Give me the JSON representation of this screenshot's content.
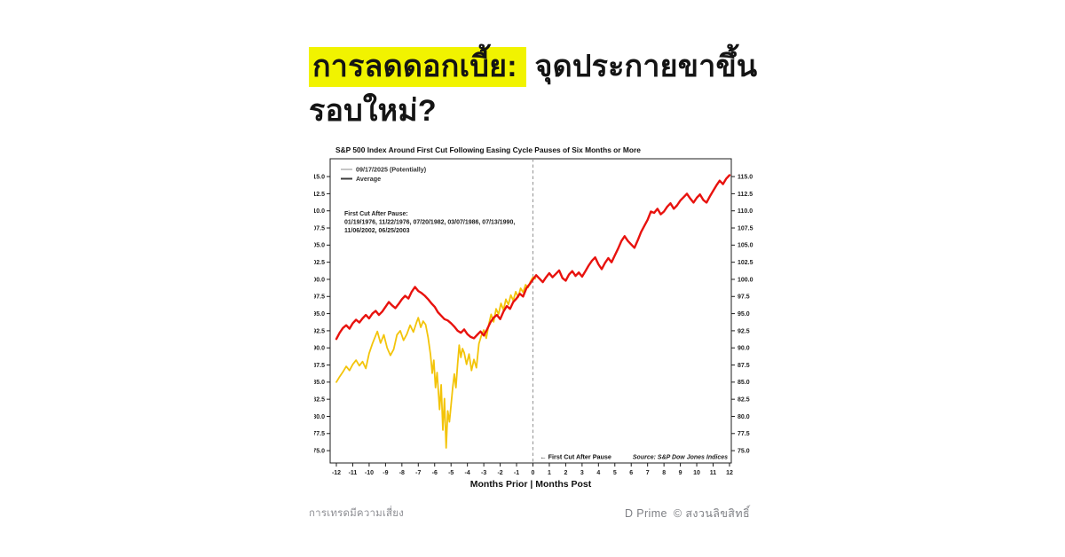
{
  "title": {
    "highlight": "การลดดอกเบี้ย:",
    "line1_rest": " จุดประกายขาขึ้น",
    "line2": "รอบใหม่?",
    "highlight_color": "#f1f300",
    "text_color": "#141414"
  },
  "footer": {
    "disclaimer": "การเทรดมีความเสี่ยง",
    "brand": "D Prime",
    "copyright": "© สงวนลิขสิทธิ์"
  },
  "chart_data": {
    "type": "line",
    "title": "S&P 500 Index Around First Cut Following Easing Cycle Pauses of Six Months or More",
    "xlabel": "Months Prior | Months Post",
    "ylabel": "",
    "xlim": [
      -12.38,
      12.11
    ],
    "ylim": [
      73.2,
      117.6
    ],
    "x_ticks": [
      -12,
      -11,
      -10,
      -9,
      -8,
      -7,
      -6,
      -5,
      -4,
      -3,
      -2,
      -1,
      0,
      1,
      2,
      3,
      4,
      5,
      6,
      7,
      8,
      9,
      10,
      11,
      12
    ],
    "y_ticks": [
      75.0,
      77.5,
      80.0,
      82.5,
      85.0,
      87.5,
      90.0,
      92.5,
      95.0,
      97.5,
      100.0,
      102.5,
      105.0,
      107.5,
      110.0,
      112.5,
      115.0
    ],
    "grid": false,
    "legend_position": "top-left",
    "legend": [
      {
        "label": "09/17/2025 (Potentially)",
        "swatch_color": "#c6c6c6"
      },
      {
        "label": "Average",
        "swatch_color": "#3d3d3d"
      }
    ],
    "vline": {
      "x": 0,
      "style": "dashed",
      "color": "#999999"
    },
    "annotations": {
      "pause_dates": [
        "First Cut After Pause:",
        "01/19/1976, 11/22/1976, 07/20/1982, 03/07/1986, 07/13/1990,",
        "11/06/2002, 06/25/2003"
      ],
      "first_cut_arrow": "←  First Cut After Pause",
      "source": "Source:  S&P Dow Jones Indices"
    },
    "axis_color": "#1c1c1c",
    "series": [
      {
        "name": "09/17/2025 (Potentially)",
        "color": "#f3c40a",
        "width": 1.8,
        "points": [
          [
            -12,
            85.0
          ],
          [
            -11.8,
            85.8
          ],
          [
            -11.6,
            86.5
          ],
          [
            -11.4,
            87.3
          ],
          [
            -11.2,
            86.7
          ],
          [
            -11,
            87.6
          ],
          [
            -10.8,
            88.2
          ],
          [
            -10.6,
            87.4
          ],
          [
            -10.4,
            88.0
          ],
          [
            -10.2,
            87.0
          ],
          [
            -10,
            89.2
          ],
          [
            -9.8,
            90.6
          ],
          [
            -9.6,
            91.8
          ],
          [
            -9.5,
            92.4
          ],
          [
            -9.3,
            90.7
          ],
          [
            -9.1,
            91.9
          ],
          [
            -8.9,
            90.0
          ],
          [
            -8.7,
            88.9
          ],
          [
            -8.5,
            89.8
          ],
          [
            -8.3,
            91.9
          ],
          [
            -8.1,
            92.5
          ],
          [
            -7.9,
            91.1
          ],
          [
            -7.7,
            92.0
          ],
          [
            -7.5,
            93.3
          ],
          [
            -7.3,
            92.3
          ],
          [
            -7.1,
            93.8
          ],
          [
            -7,
            94.4
          ],
          [
            -6.85,
            93.0
          ],
          [
            -6.7,
            93.9
          ],
          [
            -6.55,
            93.4
          ],
          [
            -6.4,
            91.5
          ],
          [
            -6.25,
            89.0
          ],
          [
            -6.15,
            86.3
          ],
          [
            -6.05,
            88.2
          ],
          [
            -5.95,
            84.2
          ],
          [
            -5.85,
            86.4
          ],
          [
            -5.7,
            81.0
          ],
          [
            -5.6,
            84.6
          ],
          [
            -5.5,
            78.0
          ],
          [
            -5.4,
            82.6
          ],
          [
            -5.3,
            75.4
          ],
          [
            -5.2,
            80.8
          ],
          [
            -5.1,
            79.2
          ],
          [
            -5,
            81.6
          ],
          [
            -4.9,
            84.2
          ],
          [
            -4.8,
            86.2
          ],
          [
            -4.7,
            84.2
          ],
          [
            -4.6,
            87.6
          ],
          [
            -4.5,
            90.4
          ],
          [
            -4.4,
            88.6
          ],
          [
            -4.3,
            89.9
          ],
          [
            -4.2,
            89.3
          ],
          [
            -4.05,
            87.6
          ],
          [
            -3.9,
            89.1
          ],
          [
            -3.75,
            86.7
          ],
          [
            -3.6,
            88.3
          ],
          [
            -3.45,
            87.1
          ],
          [
            -3.3,
            90.6
          ],
          [
            -3.15,
            91.8
          ],
          [
            -3,
            92.6
          ],
          [
            -2.85,
            91.4
          ],
          [
            -2.7,
            93.4
          ],
          [
            -2.55,
            94.9
          ],
          [
            -2.4,
            93.8
          ],
          [
            -2.25,
            95.7
          ],
          [
            -2.1,
            94.9
          ],
          [
            -1.95,
            96.5
          ],
          [
            -1.8,
            95.5
          ],
          [
            -1.65,
            97.1
          ],
          [
            -1.5,
            96.3
          ],
          [
            -1.35,
            97.7
          ],
          [
            -1.2,
            96.9
          ],
          [
            -1.05,
            98.2
          ],
          [
            -0.9,
            97.4
          ],
          [
            -0.75,
            98.7
          ],
          [
            -0.6,
            98.1
          ],
          [
            -0.45,
            99.2
          ],
          [
            -0.3,
            98.8
          ],
          [
            -0.15,
            99.7
          ],
          [
            0,
            100.3
          ],
          [
            0.15,
            100.1
          ]
        ]
      },
      {
        "name": "Average",
        "color": "#e8120e",
        "width": 2.4,
        "points": [
          [
            -12,
            91.3
          ],
          [
            -11.8,
            92.2
          ],
          [
            -11.6,
            92.9
          ],
          [
            -11.4,
            93.3
          ],
          [
            -11.2,
            92.8
          ],
          [
            -11,
            93.6
          ],
          [
            -10.8,
            94.1
          ],
          [
            -10.6,
            93.7
          ],
          [
            -10.4,
            94.3
          ],
          [
            -10.2,
            94.8
          ],
          [
            -10,
            94.3
          ],
          [
            -9.8,
            95.0
          ],
          [
            -9.6,
            95.4
          ],
          [
            -9.4,
            94.8
          ],
          [
            -9.2,
            95.3
          ],
          [
            -9,
            96.0
          ],
          [
            -8.8,
            96.7
          ],
          [
            -8.6,
            96.2
          ],
          [
            -8.4,
            95.8
          ],
          [
            -8.2,
            96.4
          ],
          [
            -8,
            97.1
          ],
          [
            -7.8,
            97.6
          ],
          [
            -7.6,
            97.2
          ],
          [
            -7.4,
            98.2
          ],
          [
            -7.2,
            98.9
          ],
          [
            -7,
            98.3
          ],
          [
            -6.8,
            98.0
          ],
          [
            -6.6,
            97.6
          ],
          [
            -6.4,
            97.1
          ],
          [
            -6.2,
            96.5
          ],
          [
            -6,
            96.0
          ],
          [
            -5.8,
            95.2
          ],
          [
            -5.6,
            94.7
          ],
          [
            -5.4,
            94.2
          ],
          [
            -5.2,
            94.0
          ],
          [
            -5,
            93.6
          ],
          [
            -4.8,
            93.1
          ],
          [
            -4.6,
            92.5
          ],
          [
            -4.4,
            92.2
          ],
          [
            -4.2,
            92.7
          ],
          [
            -4,
            92.0
          ],
          [
            -3.8,
            91.6
          ],
          [
            -3.6,
            91.4
          ],
          [
            -3.4,
            91.9
          ],
          [
            -3.2,
            92.4
          ],
          [
            -3,
            91.8
          ],
          [
            -2.8,
            92.7
          ],
          [
            -2.6,
            93.7
          ],
          [
            -2.4,
            94.4
          ],
          [
            -2.2,
            94.8
          ],
          [
            -2,
            94.2
          ],
          [
            -1.8,
            95.3
          ],
          [
            -1.6,
            96.1
          ],
          [
            -1.4,
            95.7
          ],
          [
            -1.2,
            96.7
          ],
          [
            -1,
            97.2
          ],
          [
            -0.8,
            97.9
          ],
          [
            -0.6,
            97.5
          ],
          [
            -0.4,
            98.7
          ],
          [
            -0.2,
            99.3
          ],
          [
            0,
            100.0
          ],
          [
            0.2,
            100.6
          ],
          [
            0.4,
            100.1
          ],
          [
            0.6,
            99.6
          ],
          [
            0.8,
            100.3
          ],
          [
            1,
            100.9
          ],
          [
            1.2,
            100.3
          ],
          [
            1.4,
            100.8
          ],
          [
            1.6,
            101.3
          ],
          [
            1.8,
            100.2
          ],
          [
            2,
            99.8
          ],
          [
            2.2,
            100.7
          ],
          [
            2.4,
            101.2
          ],
          [
            2.6,
            100.5
          ],
          [
            2.8,
            101.0
          ],
          [
            3,
            100.4
          ],
          [
            3.2,
            101.2
          ],
          [
            3.4,
            102.0
          ],
          [
            3.6,
            102.7
          ],
          [
            3.8,
            103.2
          ],
          [
            4,
            102.2
          ],
          [
            4.2,
            101.5
          ],
          [
            4.4,
            102.4
          ],
          [
            4.6,
            103.1
          ],
          [
            4.8,
            102.5
          ],
          [
            5,
            103.5
          ],
          [
            5.2,
            104.5
          ],
          [
            5.4,
            105.6
          ],
          [
            5.6,
            106.3
          ],
          [
            5.8,
            105.6
          ],
          [
            6,
            105.1
          ],
          [
            6.2,
            104.6
          ],
          [
            6.4,
            105.7
          ],
          [
            6.6,
            106.9
          ],
          [
            6.8,
            107.8
          ],
          [
            7,
            108.7
          ],
          [
            7.2,
            109.9
          ],
          [
            7.4,
            109.7
          ],
          [
            7.6,
            110.3
          ],
          [
            7.8,
            109.5
          ],
          [
            8,
            109.9
          ],
          [
            8.2,
            110.6
          ],
          [
            8.4,
            111.1
          ],
          [
            8.6,
            110.3
          ],
          [
            8.8,
            110.8
          ],
          [
            9,
            111.5
          ],
          [
            9.2,
            112.0
          ],
          [
            9.4,
            112.5
          ],
          [
            9.6,
            111.8
          ],
          [
            9.8,
            111.2
          ],
          [
            10,
            111.9
          ],
          [
            10.2,
            112.4
          ],
          [
            10.4,
            111.6
          ],
          [
            10.6,
            111.2
          ],
          [
            10.8,
            112.1
          ],
          [
            11,
            112.9
          ],
          [
            11.2,
            113.7
          ],
          [
            11.4,
            114.4
          ],
          [
            11.6,
            113.9
          ],
          [
            11.8,
            114.7
          ],
          [
            12,
            115.2
          ]
        ]
      }
    ]
  }
}
